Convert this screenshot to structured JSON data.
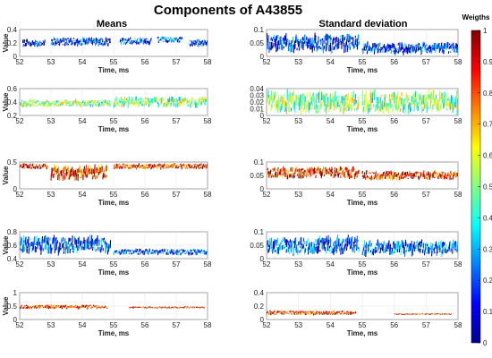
{
  "figure": {
    "title": "Components of A43855",
    "column_titles": [
      "Means",
      "Standard deviation"
    ]
  },
  "colorbar": {
    "title": "Weigths",
    "range": [
      0,
      1
    ],
    "ticks": [
      "0",
      "0.1",
      "0.2",
      "0.3",
      "0.4",
      "0.5",
      "0.6",
      "0.7",
      "0.8",
      "0.9",
      "1"
    ],
    "colormap": "jet",
    "colors": [
      "#00008f",
      "#0000ff",
      "#0080ff",
      "#00ffff",
      "#80ff80",
      "#ffff00",
      "#ff8000",
      "#ff0000",
      "#800000"
    ]
  },
  "chart_data": [
    {
      "type": "scatter",
      "panel": "means-1",
      "xlabel": "Time, ms",
      "ylabel": "Value",
      "xlim": [
        52,
        58
      ],
      "ylim": [
        0,
        0.4
      ],
      "grid": true,
      "xticks": [
        "52",
        "53",
        "54",
        "55",
        "56",
        "57",
        "58"
      ],
      "yticks": [
        "0",
        "0.2",
        "0.4"
      ],
      "weight_level": 0.15,
      "segments": [
        [
          52.1,
          52.8,
          0.2,
          0.05
        ],
        [
          53.0,
          54.9,
          0.22,
          0.06
        ],
        [
          55.2,
          56.2,
          0.23,
          0.05
        ],
        [
          56.4,
          57.2,
          0.25,
          0.04
        ],
        [
          57.4,
          58.0,
          0.2,
          0.05
        ]
      ]
    },
    {
      "type": "scatter",
      "panel": "means-2",
      "xlabel": "Time, ms",
      "ylabel": "Value",
      "xlim": [
        52,
        58
      ],
      "ylim": [
        0.2,
        0.6
      ],
      "grid": true,
      "xticks": [
        "52",
        "53",
        "54",
        "55",
        "56",
        "57",
        "58"
      ],
      "yticks": [
        "0.2",
        "0.4",
        "0.6"
      ],
      "weight_level": 0.5,
      "segments": [
        [
          52.0,
          54.9,
          0.38,
          0.05
        ],
        [
          55.0,
          58.0,
          0.4,
          0.07
        ]
      ]
    },
    {
      "type": "scatter",
      "panel": "means-3",
      "xlabel": "Time, ms",
      "ylabel": "Value",
      "xlim": [
        52,
        58
      ],
      "ylim": [
        0,
        0.5
      ],
      "grid": true,
      "xticks": [
        "52",
        "53",
        "54",
        "55",
        "56",
        "57",
        "58"
      ],
      "yticks": [
        "0",
        "0.5"
      ],
      "weight_level": 0.85,
      "segments": [
        [
          52.0,
          52.9,
          0.42,
          0.05
        ],
        [
          53.0,
          54.8,
          0.3,
          0.12
        ],
        [
          55.0,
          58.0,
          0.42,
          0.05
        ]
      ]
    },
    {
      "type": "scatter",
      "panel": "means-4",
      "xlabel": "Time, ms",
      "ylabel": "Value",
      "xlim": [
        52,
        58
      ],
      "ylim": [
        0.4,
        0.8
      ],
      "grid": true,
      "xticks": [
        "52",
        "53",
        "54",
        "55",
        "56",
        "57",
        "58"
      ],
      "yticks": [
        "0.4",
        "0.6",
        "0.8"
      ],
      "weight_level": 0.2,
      "segments": [
        [
          52.0,
          54.9,
          0.6,
          0.12
        ],
        [
          55.0,
          58.0,
          0.5,
          0.04
        ]
      ]
    },
    {
      "type": "scatter",
      "panel": "means-5",
      "xlabel": "Time, ms",
      "ylabel": "Value",
      "xlim": [
        52,
        58
      ],
      "ylim": [
        0,
        1
      ],
      "grid": true,
      "xticks": [
        "52",
        "53",
        "54",
        "55",
        "56",
        "57",
        "58"
      ],
      "yticks": [
        "0",
        "0.5",
        "1"
      ],
      "weight_level": 0.85,
      "segments": [
        [
          52.0,
          54.8,
          0.47,
          0.07
        ],
        [
          55.5,
          57.9,
          0.45,
          0.03
        ]
      ]
    },
    {
      "type": "scatter",
      "panel": "std-1",
      "xlabel": "Time, ms",
      "ylabel": "",
      "xlim": [
        52,
        58
      ],
      "ylim": [
        0,
        0.1
      ],
      "grid": true,
      "xticks": [
        "52",
        "53",
        "54",
        "55",
        "56",
        "57",
        "58"
      ],
      "yticks": [
        "0",
        "0.05",
        "0.1"
      ],
      "weight_level": 0.15,
      "segments": [
        [
          52.0,
          54.9,
          0.05,
          0.03
        ],
        [
          55.0,
          58.0,
          0.03,
          0.02
        ]
      ]
    },
    {
      "type": "scatter",
      "panel": "std-2",
      "xlabel": "Time, ms",
      "ylabel": "",
      "xlim": [
        52,
        58
      ],
      "ylim": [
        0,
        0.04
      ],
      "grid": true,
      "xticks": [
        "52",
        "53",
        "54",
        "55",
        "56",
        "57",
        "58"
      ],
      "yticks": [
        "0",
        "0.01",
        "0.02",
        "0.03",
        "0.04"
      ],
      "weight_level": 0.5,
      "segments": [
        [
          52.0,
          54.9,
          0.02,
          0.015
        ],
        [
          55.0,
          58.0,
          0.02,
          0.015
        ]
      ]
    },
    {
      "type": "scatter",
      "panel": "std-3",
      "xlabel": "Time, ms",
      "ylabel": "",
      "xlim": [
        52,
        58
      ],
      "ylim": [
        0,
        0.1
      ],
      "grid": true,
      "xticks": [
        "52",
        "53",
        "54",
        "55",
        "56",
        "57",
        "58"
      ],
      "yticks": [
        "0",
        "0.05",
        "0.1"
      ],
      "weight_level": 0.85,
      "segments": [
        [
          52.0,
          54.9,
          0.06,
          0.02
        ],
        [
          55.0,
          58.0,
          0.05,
          0.015
        ]
      ]
    },
    {
      "type": "scatter",
      "panel": "std-4",
      "xlabel": "Time, ms",
      "ylabel": "",
      "xlim": [
        52,
        58
      ],
      "ylim": [
        0,
        0.1
      ],
      "grid": true,
      "xticks": [
        "52",
        "53",
        "54",
        "55",
        "56",
        "57",
        "58"
      ],
      "yticks": [
        "0",
        "0.05",
        "0.1"
      ],
      "weight_level": 0.2,
      "segments": [
        [
          52.0,
          54.9,
          0.05,
          0.03
        ],
        [
          55.0,
          58.0,
          0.04,
          0.025
        ]
      ]
    },
    {
      "type": "scatter",
      "panel": "std-5",
      "xlabel": "Time, ms",
      "ylabel": "",
      "xlim": [
        52,
        58
      ],
      "ylim": [
        0,
        0.4
      ],
      "grid": true,
      "xticks": [
        "52",
        "53",
        "54",
        "55",
        "56",
        "57",
        "58"
      ],
      "yticks": [
        "0",
        "0.2",
        "0.4"
      ],
      "weight_level": 0.85,
      "segments": [
        [
          52.0,
          54.8,
          0.1,
          0.03
        ],
        [
          56.0,
          57.8,
          0.08,
          0.01
        ]
      ]
    }
  ]
}
